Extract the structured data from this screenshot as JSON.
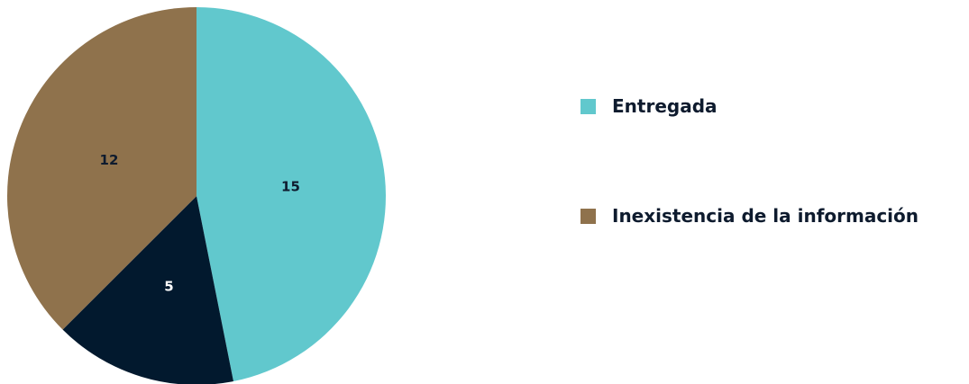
{
  "chart_data": {
    "type": "pie",
    "slices": [
      {
        "label": "",
        "value": 15,
        "color": "#61c8cd",
        "data_label": "15",
        "label_color": "#0e1b2e"
      },
      {
        "label": "",
        "value": 5,
        "color": "#02192e",
        "data_label": "5",
        "label_color": "#ffffff"
      },
      {
        "label": "Inexistencia de la información",
        "value": 12,
        "color": "#8f724c",
        "data_label": "12",
        "label_color": "#0e1b2e"
      }
    ],
    "legend": {
      "position": "right",
      "entries": [
        {
          "label": "Entregada",
          "color": "#61c8cd"
        },
        {
          "label": "Inexistencia de la información",
          "color": "#8f724c"
        }
      ]
    },
    "start_angle": "12 o'clock",
    "direction": "clockwise"
  }
}
